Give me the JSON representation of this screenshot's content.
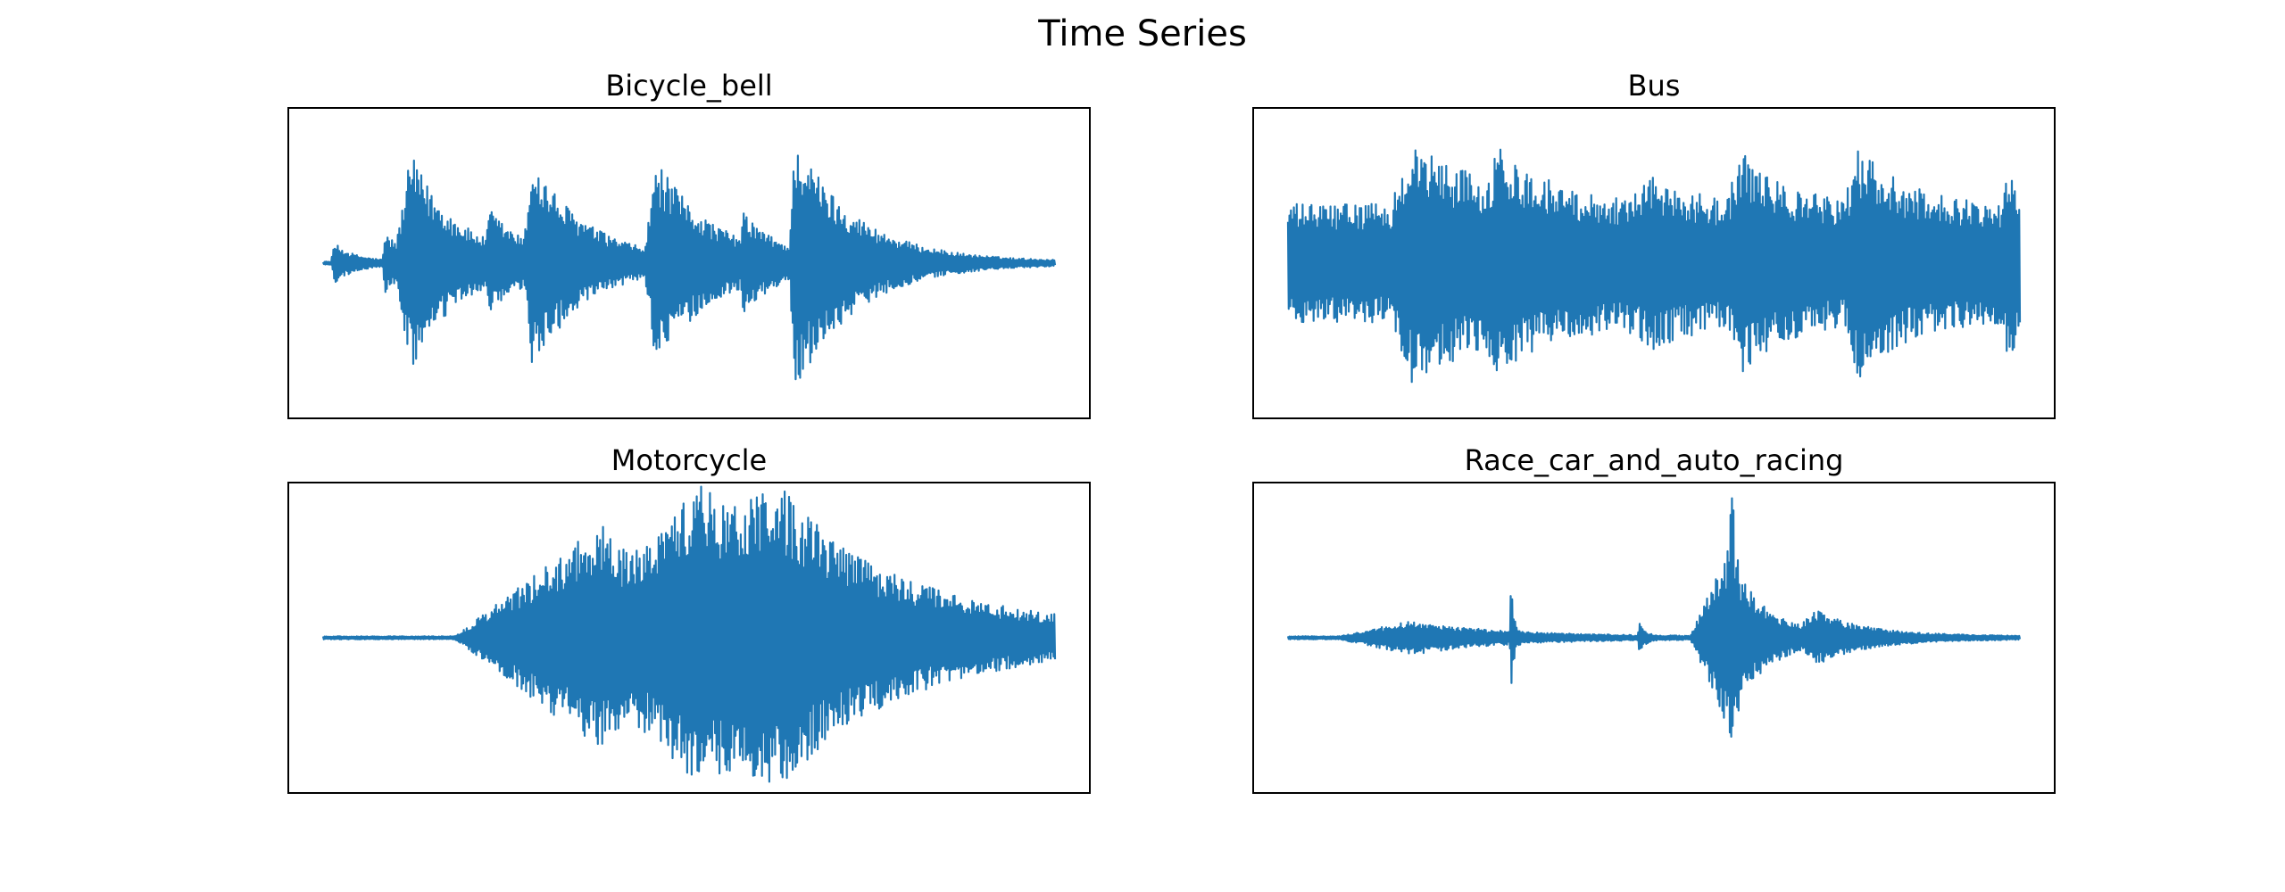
{
  "title": "Time Series",
  "colors": {
    "series": "#1f77b4",
    "frame": "#000000",
    "background": "#ffffff"
  },
  "chart_data": [
    {
      "type": "line",
      "title": "Bicycle_bell",
      "xlabel": "",
      "ylabel": "",
      "axis_ticks": "hidden",
      "grid": false,
      "ylim": [
        -1.0,
        1.0
      ],
      "n_samples": 1000,
      "envelope": {
        "baseline": 0.01,
        "events": [
          {
            "x": 0.015,
            "amp": 0.12,
            "attack": 0.004,
            "decay": 0.03
          },
          {
            "x": 0.085,
            "amp": 0.17,
            "attack": 0.004,
            "decay": 0.04
          },
          {
            "x": 0.12,
            "amp": 0.62,
            "attack": 0.02,
            "decay": 0.07
          },
          {
            "x": 0.228,
            "amp": 0.2,
            "attack": 0.006,
            "decay": 0.05
          },
          {
            "x": 0.285,
            "amp": 0.55,
            "attack": 0.01,
            "decay": 0.08
          },
          {
            "x": 0.455,
            "amp": 0.58,
            "attack": 0.015,
            "decay": 0.08
          },
          {
            "x": 0.575,
            "amp": 0.18,
            "attack": 0.005,
            "decay": 0.04
          },
          {
            "x": 0.645,
            "amp": 0.72,
            "attack": 0.008,
            "decay": 0.085
          }
        ]
      }
    },
    {
      "type": "line",
      "title": "Bus",
      "xlabel": "",
      "ylabel": "",
      "axis_ticks": "hidden",
      "grid": false,
      "ylim": [
        -1.0,
        1.0
      ],
      "n_samples": 1000,
      "envelope": {
        "baseline": 0.38,
        "events": [
          {
            "x": 0.17,
            "amp": 0.4,
            "attack": 0.03,
            "decay": 0.12
          },
          {
            "x": 0.29,
            "amp": 0.22,
            "attack": 0.02,
            "decay": 0.06
          },
          {
            "x": 0.5,
            "amp": 0.15,
            "attack": 0.04,
            "decay": 0.06
          },
          {
            "x": 0.62,
            "amp": 0.3,
            "attack": 0.02,
            "decay": 0.06
          },
          {
            "x": 0.78,
            "amp": 0.35,
            "attack": 0.02,
            "decay": 0.06
          },
          {
            "x": 0.985,
            "amp": 0.25,
            "attack": 0.01,
            "decay": 0.02
          }
        ]
      }
    },
    {
      "type": "line",
      "title": "Motorcycle",
      "xlabel": "",
      "ylabel": "",
      "axis_ticks": "hidden",
      "grid": false,
      "ylim": [
        -1.0,
        1.0
      ],
      "n_samples": 1000,
      "envelope": {
        "baseline": 0.01,
        "events": [
          {
            "x": 0.38,
            "amp": 0.72,
            "attack": 0.2,
            "decay": 0.12
          },
          {
            "x": 0.52,
            "amp": 0.82,
            "attack": 0.1,
            "decay": 0.1
          },
          {
            "x": 0.62,
            "amp": 0.6,
            "attack": 0.08,
            "decay": 0.25
          }
        ]
      }
    },
    {
      "type": "line",
      "title": "Race_car_and_auto_racing",
      "xlabel": "",
      "ylabel": "",
      "axis_ticks": "hidden",
      "grid": false,
      "ylim": [
        -1.0,
        1.0
      ],
      "n_samples": 1000,
      "envelope": {
        "baseline": 0.01,
        "events": [
          {
            "x": 0.17,
            "amp": 0.1,
            "attack": 0.1,
            "decay": 0.12
          },
          {
            "x": 0.305,
            "amp": 0.45,
            "attack": 0.002,
            "decay": 0.003
          },
          {
            "x": 0.48,
            "amp": 0.12,
            "attack": 0.002,
            "decay": 0.006
          },
          {
            "x": 0.6,
            "amp": 0.55,
            "attack": 0.05,
            "decay": 0.05
          },
          {
            "x": 0.605,
            "amp": 0.9,
            "attack": 0.002,
            "decay": 0.004
          },
          {
            "x": 0.72,
            "amp": 0.12,
            "attack": 0.02,
            "decay": 0.08
          }
        ]
      }
    }
  ]
}
